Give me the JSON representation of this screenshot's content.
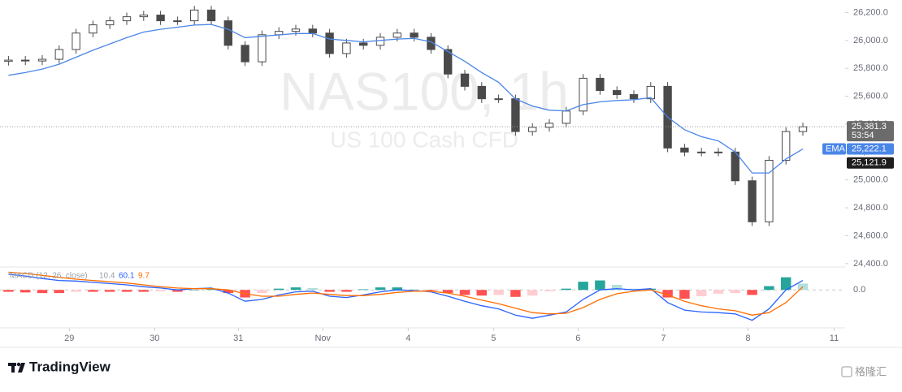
{
  "chart_data": {
    "type": "candlestick",
    "title": "NAS100, 1h",
    "subtitle": "US 100 Cash CFD",
    "x": [
      1,
      3,
      5,
      7,
      9,
      11,
      13,
      15,
      17,
      19,
      21,
      23,
      25,
      27,
      29,
      31,
      33,
      35,
      37,
      39,
      41,
      43,
      45,
      47,
      49,
      51,
      53,
      55,
      57,
      59,
      61,
      63,
      65,
      67,
      69,
      71,
      73,
      75,
      77,
      79,
      81,
      83,
      85,
      87,
      89,
      91,
      93,
      95
    ],
    "open": [
      25850,
      25859,
      25853,
      25865,
      25935,
      26053,
      26112,
      26141,
      26170,
      26182,
      26141,
      26141,
      26218,
      26141,
      25965,
      25847,
      26041,
      26065,
      26082,
      26053,
      25906,
      25982,
      25965,
      26023,
      26053,
      26023,
      25935,
      25759,
      25671,
      25582,
      25582,
      25347,
      25377,
      25406,
      25494,
      25729,
      25641,
      25612,
      25582,
      25671,
      25229,
      25200,
      25200,
      25200,
      24994,
      24700,
      25141,
      25347
    ],
    "high": [
      25889,
      25889,
      25895,
      25965,
      26083,
      26142,
      26171,
      26200,
      26212,
      26212,
      26171,
      26248,
      26248,
      26171,
      25995,
      26071,
      26095,
      26112,
      26112,
      26083,
      26012,
      26012,
      26053,
      26083,
      26083,
      26053,
      25965,
      25789,
      25701,
      25612,
      25612,
      25407,
      25436,
      25524,
      25759,
      25759,
      25671,
      25642,
      25701,
      25701,
      25259,
      25230,
      25230,
      25230,
      25024,
      25171,
      25377,
      25411
    ],
    "low": [
      25820,
      25823,
      25823,
      25835,
      25905,
      26023,
      26082,
      26111,
      26140,
      26111,
      26111,
      26111,
      26111,
      25935,
      25817,
      25817,
      26011,
      26035,
      26023,
      25876,
      25876,
      25935,
      25935,
      25993,
      25993,
      25905,
      25729,
      25641,
      25552,
      25552,
      25317,
      25317,
      25347,
      25376,
      25464,
      25611,
      25582,
      25552,
      25552,
      25199,
      25170,
      25170,
      25170,
      24964,
      24670,
      24670,
      25111,
      25317
    ],
    "close": [
      25859,
      25853,
      25865,
      25935,
      26053,
      26112,
      26141,
      26170,
      26182,
      26141,
      26141,
      26218,
      26141,
      25965,
      25847,
      26041,
      26065,
      26082,
      26053,
      25906,
      25982,
      25965,
      26023,
      26053,
      26023,
      25935,
      25759,
      25671,
      25582,
      25582,
      25347,
      25377,
      25406,
      25494,
      25729,
      25641,
      25612,
      25582,
      25671,
      25229,
      25200,
      25200,
      25200,
      24994,
      24700,
      25141,
      25347,
      25381
    ],
    "up_color": "#ffffff",
    "down_color": "#4a4a4a",
    "ema": {
      "name": "EMA",
      "color": "#4a86e8",
      "values": [
        25750,
        25770,
        25795,
        25830,
        25880,
        25930,
        25975,
        26020,
        26060,
        26080,
        26095,
        26110,
        26115,
        26080,
        26020,
        26030,
        26040,
        26050,
        26050,
        26010,
        26000,
        25990,
        26000,
        26010,
        26015,
        25990,
        25920,
        25850,
        25770,
        25700,
        25580,
        25530,
        25500,
        25495,
        25540,
        25560,
        25570,
        25575,
        25590,
        25450,
        25360,
        25310,
        25280,
        25200,
        25050,
        25050,
        25150,
        25222
      ]
    },
    "last_price": {
      "value": 25381.3,
      "label": "25,381.3"
    },
    "countdown": "53:54",
    "ema_price": {
      "value": 25222.1,
      "label": "25,222.1"
    },
    "low_price": {
      "value": 25121.9,
      "label": "25,121.9"
    },
    "xlim": [
      0,
      100
    ],
    "xticks": [
      {
        "value": 8.2,
        "label": "29"
      },
      {
        "value": 18.3,
        "label": "30"
      },
      {
        "value": 28.2,
        "label": "31"
      },
      {
        "value": 38.2,
        "label": "Nov"
      },
      {
        "value": 48.3,
        "label": "4"
      },
      {
        "value": 58.4,
        "label": "5"
      },
      {
        "value": 68.4,
        "label": "6"
      },
      {
        "value": 78.5,
        "label": "7"
      },
      {
        "value": 88.5,
        "label": "8"
      },
      {
        "value": 98.7,
        "label": "11"
      }
    ],
    "ylim": [
      24370,
      26290
    ],
    "yticks": [
      {
        "value": 24400,
        "label": "24,400.0"
      },
      {
        "value": 24600,
        "label": "24,600.0"
      },
      {
        "value": 24800,
        "label": "24,800.0"
      },
      {
        "value": 25000,
        "label": "25,000.0"
      },
      {
        "value": 25200,
        "label": "25,200.0"
      },
      {
        "value": 25400,
        "label": "25,400.0"
      },
      {
        "value": 25600,
        "label": "25,600.0"
      },
      {
        "value": 25800,
        "label": "25,800.0"
      },
      {
        "value": 26000,
        "label": "26,000.0"
      },
      {
        "value": 26200,
        "label": "26,200.0"
      }
    ],
    "macd": {
      "label": "MACD (12, 26, close)",
      "readout": [
        "10.4",
        "60.1",
        "9.7"
      ],
      "y2lim": [
        -55,
        35
      ],
      "y2ticks": [
        {
          "value": 0,
          "label": "0.0"
        }
      ],
      "series": [
        {
          "name": "MACD",
          "color": "#2962ff",
          "axis": "y2",
          "values": [
            25,
            22,
            18,
            15,
            14,
            12,
            10,
            8,
            5,
            3,
            0,
            2,
            3,
            -5,
            -18,
            -15,
            -8,
            -3,
            -2,
            -10,
            -12,
            -8,
            -3,
            0,
            -1,
            -3,
            -10,
            -18,
            -25,
            -30,
            -40,
            -45,
            -40,
            -35,
            -15,
            0,
            2,
            0,
            2,
            -20,
            -32,
            -35,
            -36,
            -38,
            -48,
            -30,
            0,
            15
          ]
        },
        {
          "name": "Signal",
          "color": "#ff6d00",
          "axis": "y2",
          "values": [
            28,
            26,
            23,
            20,
            17,
            15,
            13,
            11,
            8,
            5,
            3,
            2,
            2,
            0,
            -6,
            -10,
            -10,
            -7,
            -5,
            -7,
            -9,
            -9,
            -7,
            -4,
            -2,
            -2,
            -5,
            -10,
            -16,
            -22,
            -29,
            -36,
            -38,
            -37,
            -28,
            -15,
            -6,
            -2,
            0,
            -8,
            -18,
            -25,
            -30,
            -33,
            -40,
            -36,
            -20,
            5
          ]
        },
        {
          "name": "Histogram",
          "axis": "y2",
          "values": [
            -3,
            -4,
            -5,
            -5,
            -3,
            -3,
            -3,
            -3,
            -3,
            -2,
            -3,
            0,
            1,
            -5,
            -12,
            -5,
            2,
            4,
            3,
            -3,
            -3,
            1,
            4,
            4,
            1,
            -1,
            -5,
            -8,
            -9,
            -8,
            -11,
            -9,
            -2,
            2,
            13,
            15,
            8,
            2,
            2,
            -12,
            -14,
            -10,
            -6,
            -5,
            -8,
            6,
            20,
            10
          ]
        }
      ]
    },
    "footer": {
      "brand": "TradingView",
      "watermark": "格隆汇"
    }
  }
}
